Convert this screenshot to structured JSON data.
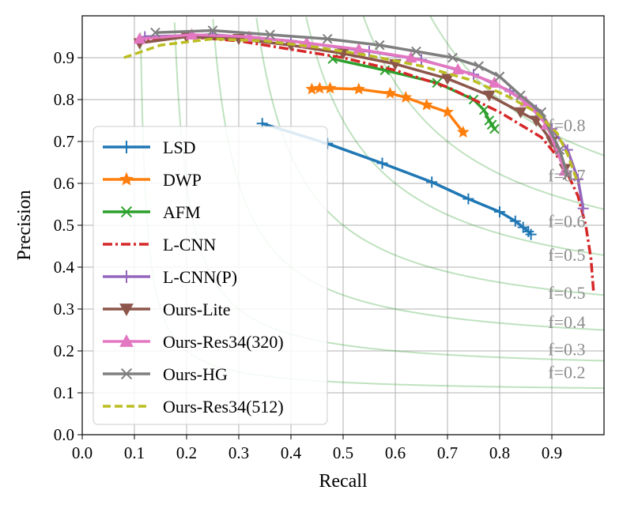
{
  "chart_data": {
    "type": "line",
    "title": "",
    "xlabel": "Recall",
    "ylabel": "Precision",
    "xlim": [
      0.0,
      1.0
    ],
    "ylim": [
      0.0,
      1.0
    ],
    "grid": true,
    "legend_position": "lower-left",
    "x_ticks": [
      "0.0",
      "0.1",
      "0.2",
      "0.3",
      "0.4",
      "0.5",
      "0.6",
      "0.7",
      "0.8",
      "0.9"
    ],
    "y_ticks": [
      "0.0",
      "0.1",
      "0.2",
      "0.3",
      "0.4",
      "0.5",
      "0.6",
      "0.7",
      "0.8",
      "0.9"
    ],
    "iso_f_curves": [
      {
        "f": 0.2,
        "label": "f=0.2",
        "label_y": 0.15
      },
      {
        "f": 0.3,
        "label": "f=0.3",
        "label_y": 0.205
      },
      {
        "f": 0.4,
        "label": "f=0.4",
        "label_y": 0.27
      },
      {
        "f": 0.5,
        "label": "f=0.5",
        "label_y": 0.34
      },
      {
        "f": 0.5,
        "label": "f=0.5",
        "label_y": 0.43
      },
      {
        "f": 0.6,
        "label": "f=0.6",
        "label_y": 0.51
      },
      {
        "f": 0.7,
        "label": "f=0.7",
        "label_y": 0.62
      },
      {
        "f": 0.8,
        "label": "f=0.8",
        "label_y": 0.74
      }
    ],
    "iso_label_x": 0.905,
    "series": [
      {
        "name": "LSD",
        "color": "#1f77b4",
        "dash": "solid",
        "marker": "plus",
        "points": [
          [
            0.345,
            0.743
          ],
          [
            0.47,
            0.695
          ],
          [
            0.575,
            0.648
          ],
          [
            0.67,
            0.603
          ],
          [
            0.74,
            0.563
          ],
          [
            0.8,
            0.532
          ],
          [
            0.83,
            0.51
          ],
          [
            0.845,
            0.495
          ],
          [
            0.855,
            0.485
          ],
          [
            0.86,
            0.478
          ]
        ]
      },
      {
        "name": "DWP",
        "color": "#ff7f0e",
        "dash": "solid",
        "marker": "star",
        "points": [
          [
            0.44,
            0.825
          ],
          [
            0.455,
            0.827
          ],
          [
            0.475,
            0.827
          ],
          [
            0.53,
            0.825
          ],
          [
            0.59,
            0.815
          ],
          [
            0.62,
            0.805
          ],
          [
            0.66,
            0.787
          ],
          [
            0.7,
            0.77
          ],
          [
            0.73,
            0.722
          ]
        ]
      },
      {
        "name": "AFM",
        "color": "#2ca02c",
        "dash": "solid",
        "marker": "x",
        "points": [
          [
            0.48,
            0.897
          ],
          [
            0.58,
            0.87
          ],
          [
            0.68,
            0.84
          ],
          [
            0.75,
            0.8
          ],
          [
            0.77,
            0.775
          ],
          [
            0.78,
            0.75
          ],
          [
            0.785,
            0.74
          ],
          [
            0.79,
            0.73
          ]
        ]
      },
      {
        "name": "L-CNN",
        "color": "#d62728",
        "dash": "dashdot",
        "marker": "none",
        "points": [
          [
            0.1,
            0.94
          ],
          [
            0.2,
            0.95
          ],
          [
            0.3,
            0.94
          ],
          [
            0.4,
            0.92
          ],
          [
            0.5,
            0.9
          ],
          [
            0.6,
            0.87
          ],
          [
            0.7,
            0.83
          ],
          [
            0.8,
            0.77
          ],
          [
            0.88,
            0.71
          ],
          [
            0.92,
            0.65
          ],
          [
            0.95,
            0.57
          ],
          [
            0.965,
            0.5
          ],
          [
            0.975,
            0.42
          ],
          [
            0.98,
            0.34
          ]
        ]
      },
      {
        "name": "L-CNN(P)",
        "color": "#9467bd",
        "dash": "solid",
        "marker": "plus",
        "points": [
          [
            0.12,
            0.95
          ],
          [
            0.25,
            0.955
          ],
          [
            0.4,
            0.94
          ],
          [
            0.55,
            0.915
          ],
          [
            0.65,
            0.895
          ],
          [
            0.75,
            0.86
          ],
          [
            0.82,
            0.82
          ],
          [
            0.87,
            0.775
          ],
          [
            0.9,
            0.73
          ],
          [
            0.93,
            0.68
          ],
          [
            0.95,
            0.61
          ],
          [
            0.96,
            0.54
          ]
        ]
      },
      {
        "name": "Ours-Lite",
        "color": "#8c564b",
        "dash": "solid",
        "marker": "triangle-down",
        "points": [
          [
            0.11,
            0.935
          ],
          [
            0.2,
            0.95
          ],
          [
            0.3,
            0.945
          ],
          [
            0.4,
            0.93
          ],
          [
            0.5,
            0.91
          ],
          [
            0.6,
            0.885
          ],
          [
            0.7,
            0.85
          ],
          [
            0.78,
            0.81
          ],
          [
            0.84,
            0.77
          ],
          [
            0.87,
            0.75
          ],
          [
            0.9,
            0.7
          ],
          [
            0.925,
            0.635
          ]
        ]
      },
      {
        "name": "Ours-Res34(320)",
        "color": "#e377c2",
        "dash": "solid",
        "marker": "triangle-up",
        "points": [
          [
            0.11,
            0.945
          ],
          [
            0.21,
            0.955
          ],
          [
            0.32,
            0.95
          ],
          [
            0.43,
            0.935
          ],
          [
            0.53,
            0.92
          ],
          [
            0.63,
            0.9
          ],
          [
            0.72,
            0.872
          ],
          [
            0.79,
            0.84
          ],
          [
            0.85,
            0.795
          ],
          [
            0.89,
            0.74
          ],
          [
            0.925,
            0.63
          ]
        ]
      },
      {
        "name": "Ours-HG",
        "color": "#7f7f7f",
        "dash": "solid",
        "marker": "x",
        "points": [
          [
            0.14,
            0.96
          ],
          [
            0.25,
            0.965
          ],
          [
            0.36,
            0.955
          ],
          [
            0.47,
            0.945
          ],
          [
            0.57,
            0.93
          ],
          [
            0.64,
            0.915
          ],
          [
            0.71,
            0.9
          ],
          [
            0.76,
            0.88
          ],
          [
            0.8,
            0.855
          ],
          [
            0.84,
            0.81
          ],
          [
            0.88,
            0.77
          ],
          [
            0.915,
            0.68
          ],
          [
            0.93,
            0.62
          ]
        ]
      },
      {
        "name": "Ours-Res34(512)",
        "color": "#bcbd22",
        "dash": "dashed",
        "marker": "none",
        "points": [
          [
            0.08,
            0.9
          ],
          [
            0.15,
            0.93
          ],
          [
            0.25,
            0.945
          ],
          [
            0.35,
            0.94
          ],
          [
            0.45,
            0.925
          ],
          [
            0.55,
            0.905
          ],
          [
            0.65,
            0.88
          ],
          [
            0.75,
            0.845
          ],
          [
            0.82,
            0.805
          ],
          [
            0.87,
            0.77
          ],
          [
            0.91,
            0.72
          ],
          [
            0.93,
            0.67
          ],
          [
            0.95,
            0.6
          ]
        ]
      }
    ]
  }
}
